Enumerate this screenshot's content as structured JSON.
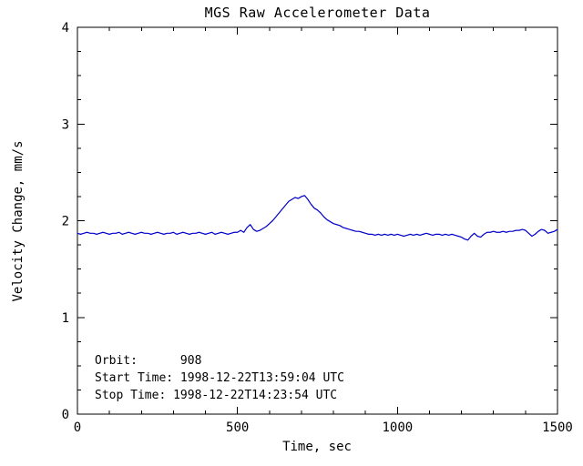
{
  "chart_data": {
    "type": "line",
    "title": "MGS Raw Accelerometer Data",
    "xlabel": "Time, sec",
    "ylabel": "Velocity Change, mm/s",
    "xlim": [
      0,
      1500
    ],
    "ylim": [
      0,
      4
    ],
    "xticks": [
      0,
      500,
      1000,
      1500
    ],
    "yticks": [
      0,
      1,
      2,
      3,
      4
    ],
    "x_minor_interval": 100,
    "y_minor_interval": 0.25,
    "grid": false,
    "legend": "none",
    "line_color": "#0000cc",
    "axis_color": "#000000",
    "background": "#ffffff",
    "annotations": [
      "Orbit:      908",
      "Start Time: 1998-12-22T13:59:04 UTC",
      "Stop Time: 1998-12-22T14:23:54 UTC"
    ],
    "series": [
      {
        "name": "velocity_change_mm_per_s",
        "x_start": 0,
        "x_step": 10,
        "values": [
          1.87,
          1.86,
          1.87,
          1.88,
          1.87,
          1.87,
          1.86,
          1.87,
          1.88,
          1.87,
          1.86,
          1.87,
          1.87,
          1.88,
          1.86,
          1.87,
          1.88,
          1.87,
          1.86,
          1.87,
          1.88,
          1.87,
          1.87,
          1.86,
          1.87,
          1.88,
          1.87,
          1.86,
          1.87,
          1.87,
          1.88,
          1.86,
          1.87,
          1.88,
          1.87,
          1.86,
          1.87,
          1.87,
          1.88,
          1.87,
          1.86,
          1.87,
          1.88,
          1.86,
          1.87,
          1.88,
          1.87,
          1.86,
          1.87,
          1.88,
          1.88,
          1.9,
          1.88,
          1.93,
          1.96,
          1.91,
          1.89,
          1.9,
          1.92,
          1.94,
          1.97,
          2.0,
          2.04,
          2.08,
          2.12,
          2.16,
          2.2,
          2.22,
          2.24,
          2.23,
          2.25,
          2.26,
          2.22,
          2.17,
          2.13,
          2.11,
          2.08,
          2.04,
          2.01,
          1.99,
          1.97,
          1.96,
          1.95,
          1.93,
          1.92,
          1.91,
          1.9,
          1.89,
          1.89,
          1.88,
          1.87,
          1.86,
          1.86,
          1.85,
          1.86,
          1.85,
          1.86,
          1.85,
          1.86,
          1.85,
          1.86,
          1.85,
          1.84,
          1.85,
          1.86,
          1.85,
          1.86,
          1.85,
          1.86,
          1.87,
          1.86,
          1.85,
          1.86,
          1.86,
          1.85,
          1.86,
          1.85,
          1.86,
          1.85,
          1.84,
          1.83,
          1.81,
          1.8,
          1.84,
          1.87,
          1.84,
          1.83,
          1.86,
          1.88,
          1.88,
          1.89,
          1.88,
          1.88,
          1.89,
          1.88,
          1.89,
          1.89,
          1.9,
          1.9,
          1.91,
          1.9,
          1.87,
          1.84,
          1.86,
          1.89,
          1.91,
          1.9,
          1.87,
          1.88,
          1.89,
          1.91
        ]
      }
    ]
  }
}
